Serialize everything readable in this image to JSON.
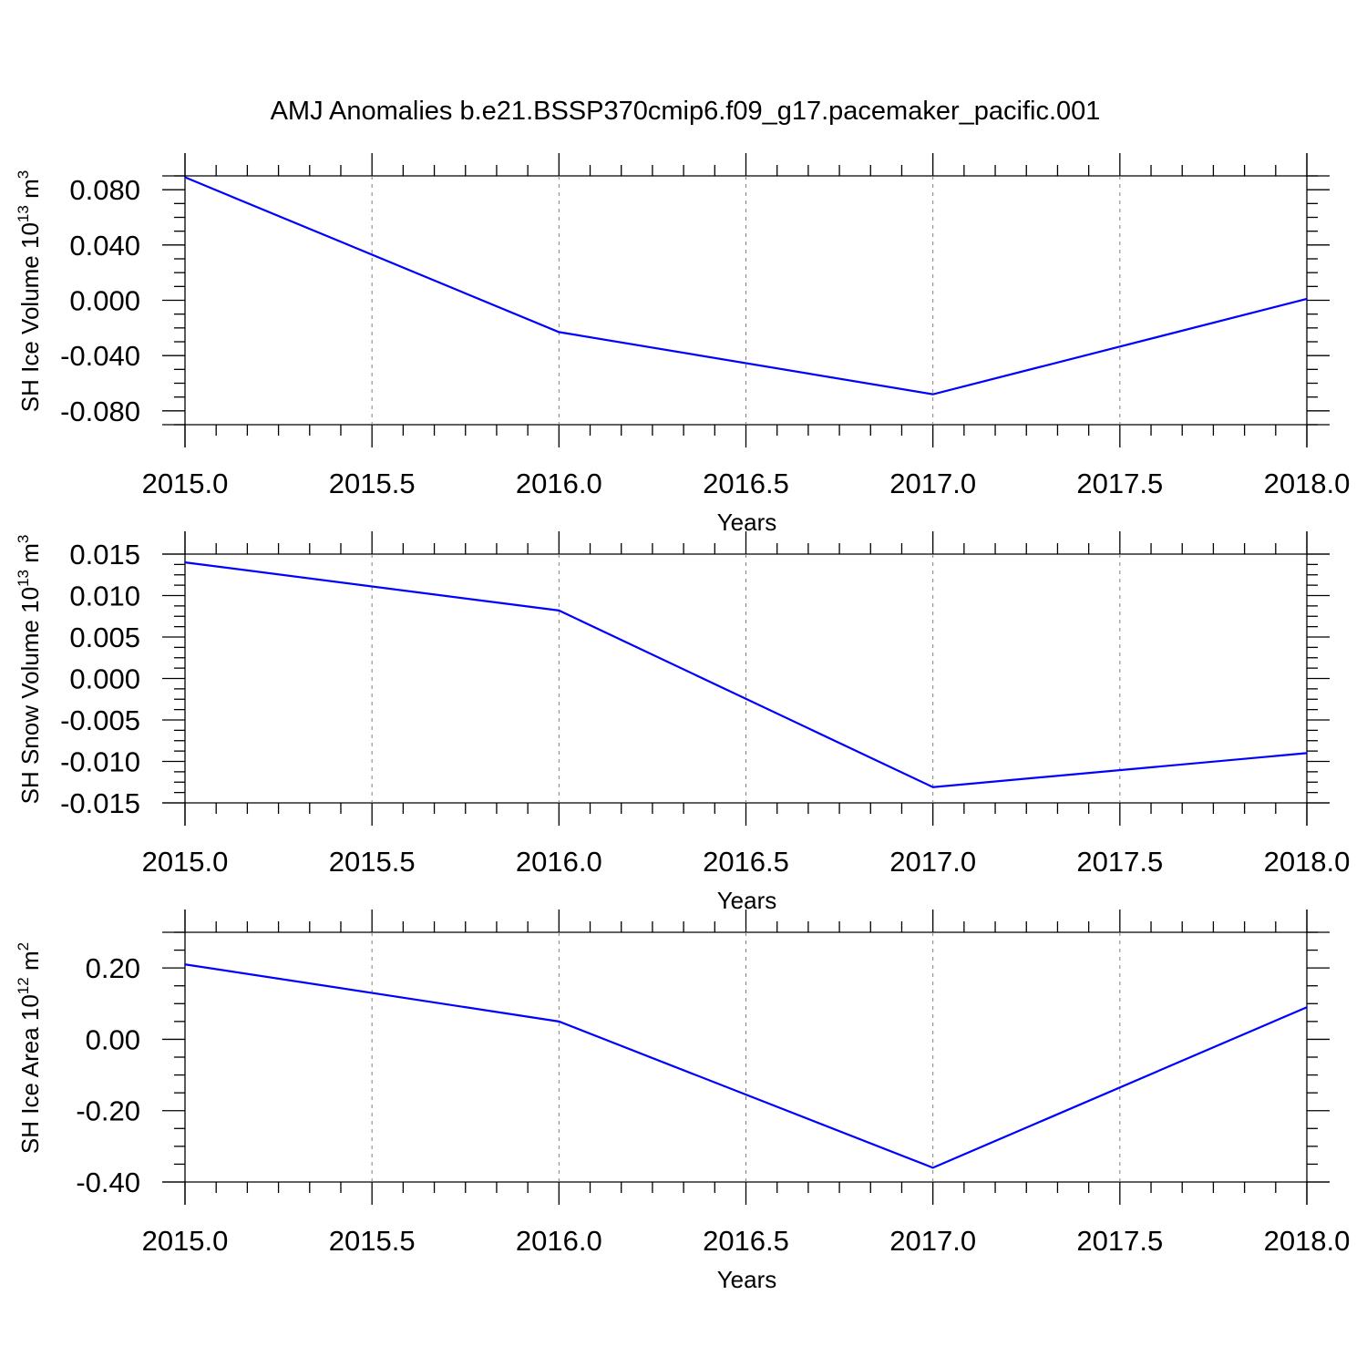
{
  "title": "AMJ Anomalies b.e21.BSSP370cmip6.f09_g17.pacemaker_pacific.001",
  "colors": {
    "series": "#0000ff",
    "axis": "#000000",
    "grid": "#808080",
    "background": "#ffffff"
  },
  "chart_data": [
    {
      "type": "line",
      "x": [
        2015,
        2016,
        2017,
        2018
      ],
      "series": [
        {
          "values": [
            0.089,
            -0.023,
            -0.068,
            0.001
          ]
        }
      ],
      "xlim": [
        2015,
        2018
      ],
      "ylim": [
        -0.09,
        0.09
      ],
      "xticks": [
        "2015.0",
        "2015.5",
        "2016.0",
        "2016.5",
        "2017.0",
        "2017.5",
        "2018.0"
      ],
      "yticks": [
        "0.080",
        "0.040",
        "0.000",
        "-0.040",
        "-0.080"
      ],
      "xlabel": "Years",
      "ylabel": {
        "text": "SH Ice Volume 10",
        "sup1": "13",
        "unit": " m",
        "sup2": "3"
      },
      "grid": "vertical dashed at major x ticks"
    },
    {
      "type": "line",
      "x": [
        2015,
        2016,
        2017,
        2018
      ],
      "series": [
        {
          "values": [
            0.014,
            0.0082,
            -0.0131,
            -0.009
          ]
        }
      ],
      "xlim": [
        2015,
        2018
      ],
      "ylim": [
        -0.015,
        0.015
      ],
      "xticks": [
        "2015.0",
        "2015.5",
        "2016.0",
        "2016.5",
        "2017.0",
        "2017.5",
        "2018.0"
      ],
      "yticks": [
        "0.015",
        "0.010",
        "0.005",
        "0.000",
        "-0.005",
        "-0.010",
        "-0.015"
      ],
      "xlabel": "Years",
      "ylabel": {
        "text": "SH Snow Volume 10",
        "sup1": "13",
        "unit": " m",
        "sup2": "3"
      },
      "grid": "vertical dashed at major x ticks"
    },
    {
      "type": "line",
      "x": [
        2015,
        2016,
        2017,
        2018
      ],
      "series": [
        {
          "values": [
            0.21,
            0.05,
            -0.36,
            0.09
          ]
        }
      ],
      "xlim": [
        2015,
        2018
      ],
      "ylim": [
        -0.4,
        0.3
      ],
      "xticks": [
        "2015.0",
        "2015.5",
        "2016.0",
        "2016.5",
        "2017.0",
        "2017.5",
        "2018.0"
      ],
      "yticks": [
        "0.20",
        "0.00",
        "-0.20",
        "-0.40"
      ],
      "xlabel": "Years",
      "ylabel": {
        "text": "SH Ice Area 10",
        "sup1": "12",
        "unit": " m",
        "sup2": "2"
      },
      "grid": "vertical dashed at major x ticks"
    }
  ]
}
